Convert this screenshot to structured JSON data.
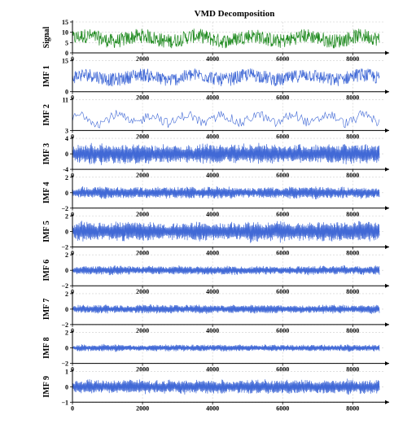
{
  "colors": {
    "signal": "#1f8a1f",
    "imf": "#4169d6",
    "axis": "#000000",
    "grid": "#cccccc"
  },
  "chart_data": {
    "type": "line",
    "title": "VMD Decomposition",
    "x_axis": {
      "range": [
        0,
        8760
      ],
      "ticks": [
        0,
        2000,
        4000,
        6000,
        8000
      ],
      "tick_labels": [
        "0",
        "2000",
        "4000",
        "6000",
        "8000"
      ]
    },
    "grid": true,
    "panels": [
      {
        "ylabel": "Signal",
        "ylim": [
          0,
          15
        ],
        "yticks": [
          0,
          5,
          10,
          15
        ],
        "ytick_labels": [
          "0",
          "5",
          "10",
          "15"
        ],
        "color": "signal",
        "mean": 7,
        "amp": 3.2,
        "style": "fill"
      },
      {
        "ylabel": "IMF 1",
        "ylim": [
          0,
          15
        ],
        "yticks": [
          0,
          15
        ],
        "ytick_labels": [
          "0",
          "15"
        ],
        "color": "imf",
        "mean": 7,
        "amp": 3.0,
        "style": "fill"
      },
      {
        "ylabel": "IMF 2",
        "ylim": [
          3,
          11
        ],
        "yticks": [
          3,
          11
        ],
        "ytick_labels": [
          "3",
          "11"
        ],
        "color": "imf",
        "mean": 6,
        "amp": 1.8,
        "style": "thin"
      },
      {
        "ylabel": "IMF 3",
        "ylim": [
          -4,
          4
        ],
        "yticks": [
          -4,
          0,
          4
        ],
        "ytick_labels": [
          "-4",
          "0",
          "4"
        ],
        "color": "imf",
        "mean": 0,
        "amp": 2.0,
        "style": "osc"
      },
      {
        "ylabel": "IMF 4",
        "ylim": [
          -2,
          2
        ],
        "yticks": [
          -2,
          0,
          2
        ],
        "ytick_labels": [
          "−2",
          "0",
          "2"
        ],
        "color": "imf",
        "mean": 0,
        "amp": 0.6,
        "style": "osc"
      },
      {
        "ylabel": "IMF 5",
        "ylim": [
          -2,
          2
        ],
        "yticks": [
          -2,
          0,
          2
        ],
        "ytick_labels": [
          "−2",
          "0",
          "2"
        ],
        "color": "imf",
        "mean": 0,
        "amp": 1.0,
        "style": "osc"
      },
      {
        "ylabel": "IMF 6",
        "ylim": [
          -2,
          2
        ],
        "yticks": [
          -2,
          0,
          2
        ],
        "ytick_labels": [
          "−2",
          "0",
          "2"
        ],
        "color": "imf",
        "mean": 0,
        "amp": 0.45,
        "style": "osc"
      },
      {
        "ylabel": "IMF 7",
        "ylim": [
          -2,
          2
        ],
        "yticks": [
          -2,
          0,
          2
        ],
        "ytick_labels": [
          "−2",
          "0",
          "2"
        ],
        "color": "imf",
        "mean": 0,
        "amp": 0.45,
        "style": "osc"
      },
      {
        "ylabel": "IMF 8",
        "ylim": [
          -2,
          2
        ],
        "yticks": [
          -2,
          0,
          2
        ],
        "ytick_labels": [
          "−2",
          "0",
          "2"
        ],
        "color": "imf",
        "mean": 0,
        "amp": 0.35,
        "style": "osc"
      },
      {
        "ylabel": "IMF 9",
        "ylim": [
          -1,
          1
        ],
        "yticks": [
          -1,
          0,
          1
        ],
        "ytick_labels": [
          "−1",
          "0",
          "1"
        ],
        "color": "imf",
        "mean": 0,
        "amp": 0.35,
        "style": "osc"
      }
    ]
  }
}
